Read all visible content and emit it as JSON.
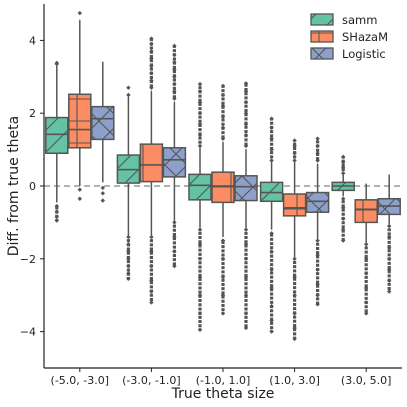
{
  "chart_data": {
    "type": "box",
    "title": "",
    "xlabel": "True theta size",
    "ylabel": "Diff. from true theta",
    "categories": [
      "(-5.0, -3.0]",
      "(-3.0, -1.0]",
      "(-1.0, 1.0]",
      "(1.0, 3.0]",
      "(3.0, 5.0]"
    ],
    "ylim": [
      -5,
      5
    ],
    "yticks": [
      -4,
      -2,
      0,
      2,
      4
    ],
    "reference_line": 0,
    "legend_position": "top-right",
    "series": [
      {
        "name": "samm",
        "color": "#66c2a5",
        "hatch": "diagonal",
        "boxes": [
          {
            "whislo": -0.45,
            "q1": 0.9,
            "med": 1.42,
            "q3": 1.88,
            "whishi": 3.3,
            "outliers": [
              3.38,
              3.35,
              -0.55,
              -0.7,
              -0.85,
              -0.95
            ]
          },
          {
            "whislo": -1.35,
            "q1": 0.08,
            "med": 0.45,
            "q3": 0.85,
            "whishi": 2.45,
            "outliers": [
              2.5,
              2.7,
              -1.4,
              -1.6,
              -1.8,
              -2.0,
              -2.2,
              -2.4,
              -2.55
            ]
          },
          {
            "whislo": -1.15,
            "q1": -0.38,
            "med": 0.02,
            "q3": 0.32,
            "whishi": 1.05,
            "outliers": [
              1.1,
              1.4,
              1.7,
              2.0,
              2.3,
              2.6,
              2.8,
              -1.2,
              -1.6,
              -2.0,
              -2.5,
              -3.0,
              -3.5,
              -3.95
            ]
          },
          {
            "whislo": -1.2,
            "q1": -0.42,
            "med": -0.18,
            "q3": 0.1,
            "whishi": 0.65,
            "outliers": [
              0.7,
              1.0,
              1.3,
              1.6,
              1.85,
              -1.3,
              -1.8,
              -2.3,
              -2.8,
              -3.3,
              -3.7,
              -4.0
            ]
          },
          {
            "whislo": -0.28,
            "q1": -0.12,
            "med": 0.0,
            "q3": 0.1,
            "whishi": 0.3,
            "outliers": [
              0.35,
              0.5,
              0.65,
              0.8,
              -0.35,
              -0.6,
              -0.9,
              -1.2,
              -1.5
            ]
          }
        ]
      },
      {
        "name": "SHazaM",
        "color": "#fc8d62",
        "hatch": "grid",
        "boxes": [
          {
            "whislo": 0.0,
            "q1": 1.05,
            "med": 1.55,
            "q3": 2.52,
            "whishi": 4.55,
            "outliers": [
              4.75,
              -0.1,
              -0.35
            ]
          },
          {
            "whislo": -1.35,
            "q1": 0.12,
            "med": 0.58,
            "q3": 1.15,
            "whishi": 2.6,
            "outliers": [
              2.7,
              2.9,
              3.1,
              3.3,
              3.5,
              3.7,
              3.9,
              4.05,
              -1.4,
              -1.8,
              -2.2,
              -2.6,
              -2.9,
              -3.2
            ]
          },
          {
            "whislo": -1.4,
            "q1": -0.45,
            "med": 0.0,
            "q3": 0.38,
            "whishi": 1.2,
            "outliers": [
              1.3,
              1.6,
              1.9,
              2.2,
              2.5,
              2.75,
              -1.5,
              -2.0,
              -2.5,
              -3.0,
              -3.5
            ]
          },
          {
            "whislo": -1.95,
            "q1": -0.82,
            "med": -0.6,
            "q3": -0.22,
            "whishi": 0.65,
            "outliers": [
              0.7,
              0.9,
              1.1,
              1.25,
              -2.0,
              -2.5,
              -3.0,
              -3.5,
              -3.9,
              -4.2
            ]
          },
          {
            "whislo": -1.55,
            "q1": -1.0,
            "med": -0.65,
            "q3": -0.38,
            "whishi": 0.05,
            "outliers": [
              -1.6,
              -2.0,
              -2.4,
              -2.8,
              -3.2,
              -3.5
            ]
          }
        ]
      },
      {
        "name": "Logistic",
        "color": "#8da0cb",
        "hatch": "cross",
        "boxes": [
          {
            "whislo": 0.1,
            "q1": 1.28,
            "med": 1.85,
            "q3": 2.18,
            "whishi": 3.4,
            "outliers": [
              -0.05,
              -0.2,
              -0.4
            ]
          },
          {
            "whislo": -0.95,
            "q1": 0.25,
            "med": 0.72,
            "q3": 1.05,
            "whishi": 2.3,
            "outliers": [
              2.4,
              2.6,
              2.8,
              3.0,
              3.2,
              3.4,
              3.6,
              3.85,
              -1.0,
              -1.4,
              -1.8,
              -2.2
            ]
          },
          {
            "whislo": -1.15,
            "q1": -0.4,
            "med": -0.02,
            "q3": 0.28,
            "whishi": 1.0,
            "outliers": [
              1.1,
              1.4,
              1.7,
              2.0,
              2.3,
              2.6,
              2.82,
              -1.2,
              -1.6,
              -2.0,
              -2.5,
              -3.0,
              -3.5,
              -3.9
            ]
          },
          {
            "whislo": -1.45,
            "q1": -0.72,
            "med": -0.42,
            "q3": -0.18,
            "whishi": 0.6,
            "outliers": [
              0.7,
              0.9,
              1.1,
              1.3,
              -1.5,
              -1.9,
              -2.3,
              -2.7,
              -3.0,
              -3.25
            ]
          },
          {
            "whislo": -1.05,
            "q1": -0.78,
            "med": -0.55,
            "q3": -0.35,
            "whishi": 0.3,
            "outliers": [
              -1.1,
              -1.4,
              -1.7,
              -2.0,
              -2.3,
              -2.6,
              -2.9
            ]
          }
        ]
      }
    ]
  }
}
